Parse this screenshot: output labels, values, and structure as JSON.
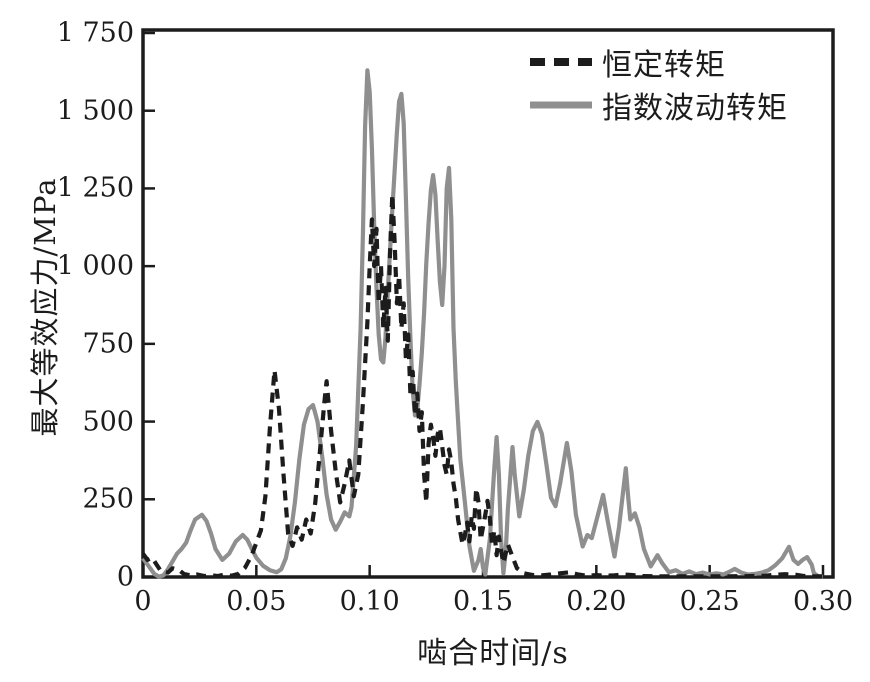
{
  "figure": {
    "background": "#ffffff",
    "axis_color": "#1c1c1c"
  },
  "chart_data": {
    "type": "line",
    "title": "",
    "xlabel": "啮合时间/s",
    "ylabel": "最大等效应力/MPa",
    "xlim": [
      0,
      0.3
    ],
    "ylim": [
      0,
      1750
    ],
    "grid": false,
    "legend_position": "top-right-inside",
    "x_ticks": [
      0,
      0.05,
      0.1,
      0.15,
      0.2,
      0.25,
      0.3
    ],
    "x_tick_labels": [
      "0",
      "0.05",
      "0.10",
      "0.15",
      "0.20",
      "0.25",
      "0.30"
    ],
    "y_ticks": [
      0,
      250,
      500,
      750,
      1000,
      1250,
      1500,
      1750
    ],
    "y_tick_labels": [
      "0",
      "250",
      "500",
      "750",
      "1 000",
      "1 250",
      "1 500",
      "1 750"
    ],
    "series": [
      {
        "name": "恒定转矩",
        "style": "dashed",
        "color": "#1c1c1c",
        "points": [
          [
            0.0,
            75
          ],
          [
            0.002,
            55
          ],
          [
            0.004,
            62
          ],
          [
            0.006,
            40
          ],
          [
            0.008,
            18
          ],
          [
            0.011,
            14
          ],
          [
            0.013,
            28
          ],
          [
            0.016,
            22
          ],
          [
            0.018,
            10
          ],
          [
            0.021,
            5
          ],
          [
            0.024,
            8
          ],
          [
            0.027,
            3
          ],
          [
            0.03,
            6
          ],
          [
            0.033,
            3
          ],
          [
            0.036,
            8
          ],
          [
            0.039,
            4
          ],
          [
            0.042,
            10
          ],
          [
            0.045,
            30
          ],
          [
            0.048,
            70
          ],
          [
            0.05,
            110
          ],
          [
            0.052,
            150
          ],
          [
            0.054,
            260
          ],
          [
            0.056,
            480
          ],
          [
            0.058,
            665
          ],
          [
            0.06,
            540
          ],
          [
            0.062,
            330
          ],
          [
            0.064,
            140
          ],
          [
            0.066,
            100
          ],
          [
            0.068,
            160
          ],
          [
            0.07,
            120
          ],
          [
            0.072,
            185
          ],
          [
            0.074,
            140
          ],
          [
            0.076,
            240
          ],
          [
            0.078,
            400
          ],
          [
            0.08,
            560
          ],
          [
            0.081,
            630
          ],
          [
            0.083,
            470
          ],
          [
            0.085,
            340
          ],
          [
            0.087,
            240
          ],
          [
            0.089,
            300
          ],
          [
            0.091,
            375
          ],
          [
            0.093,
            260
          ],
          [
            0.095,
            330
          ],
          [
            0.097,
            560
          ],
          [
            0.099,
            820
          ],
          [
            0.1,
            1000
          ],
          [
            0.101,
            1150
          ],
          [
            0.102,
            1000
          ],
          [
            0.103,
            1120
          ],
          [
            0.104,
            880
          ],
          [
            0.105,
            1000
          ],
          [
            0.106,
            800
          ],
          [
            0.107,
            930
          ],
          [
            0.108,
            760
          ],
          [
            0.109,
            1050
          ],
          [
            0.11,
            1230
          ],
          [
            0.111,
            1080
          ],
          [
            0.112,
            880
          ],
          [
            0.113,
            970
          ],
          [
            0.114,
            800
          ],
          [
            0.115,
            880
          ],
          [
            0.116,
            700
          ],
          [
            0.117,
            780
          ],
          [
            0.118,
            580
          ],
          [
            0.119,
            660
          ],
          [
            0.12,
            520
          ],
          [
            0.121,
            590
          ],
          [
            0.122,
            470
          ],
          [
            0.123,
            530
          ],
          [
            0.124,
            330
          ],
          [
            0.125,
            240
          ],
          [
            0.126,
            430
          ],
          [
            0.127,
            490
          ],
          [
            0.128,
            450
          ],
          [
            0.129,
            390
          ],
          [
            0.13,
            460
          ],
          [
            0.131,
            480
          ],
          [
            0.132,
            420
          ],
          [
            0.133,
            360
          ],
          [
            0.134,
            330
          ],
          [
            0.135,
            410
          ],
          [
            0.136,
            370
          ],
          [
            0.137,
            300
          ],
          [
            0.138,
            255
          ],
          [
            0.139,
            185
          ],
          [
            0.14,
            145
          ],
          [
            0.141,
            105
          ],
          [
            0.142,
            135
          ],
          [
            0.143,
            175
          ],
          [
            0.144,
            115
          ],
          [
            0.145,
            195
          ],
          [
            0.146,
            155
          ],
          [
            0.147,
            285
          ],
          [
            0.148,
            240
          ],
          [
            0.149,
            120
          ],
          [
            0.15,
            160
          ],
          [
            0.151,
            200
          ],
          [
            0.152,
            245
          ],
          [
            0.153,
            190
          ],
          [
            0.154,
            100
          ],
          [
            0.155,
            150
          ],
          [
            0.156,
            70
          ],
          [
            0.157,
            130
          ],
          [
            0.158,
            85
          ],
          [
            0.159,
            45
          ],
          [
            0.161,
            105
          ],
          [
            0.163,
            65
          ],
          [
            0.165,
            28
          ],
          [
            0.168,
            12
          ],
          [
            0.172,
            6
          ],
          [
            0.176,
            5
          ],
          [
            0.18,
            8
          ],
          [
            0.184,
            12
          ],
          [
            0.188,
            15
          ],
          [
            0.192,
            8
          ],
          [
            0.196,
            4
          ],
          [
            0.2,
            6
          ],
          [
            0.204,
            4
          ],
          [
            0.208,
            5
          ],
          [
            0.212,
            8
          ],
          [
            0.216,
            6
          ],
          [
            0.22,
            3
          ],
          [
            0.228,
            2
          ],
          [
            0.238,
            2
          ],
          [
            0.248,
            2
          ],
          [
            0.258,
            2
          ],
          [
            0.268,
            3
          ],
          [
            0.274,
            4
          ],
          [
            0.279,
            7
          ],
          [
            0.283,
            9
          ],
          [
            0.287,
            8
          ],
          [
            0.291,
            4
          ],
          [
            0.295,
            2
          ],
          [
            0.3,
            2
          ]
        ]
      },
      {
        "name": "指数波动转矩",
        "style": "solid",
        "color": "#8f8f8f",
        "points": [
          [
            0.0,
            60
          ],
          [
            0.003,
            30
          ],
          [
            0.005,
            10
          ],
          [
            0.007,
            1
          ],
          [
            0.009,
            5
          ],
          [
            0.011,
            25
          ],
          [
            0.013,
            50
          ],
          [
            0.015,
            75
          ],
          [
            0.017,
            90
          ],
          [
            0.019,
            110
          ],
          [
            0.021,
            150
          ],
          [
            0.023,
            185
          ],
          [
            0.026,
            200
          ],
          [
            0.028,
            180
          ],
          [
            0.03,
            140
          ],
          [
            0.032,
            90
          ],
          [
            0.035,
            55
          ],
          [
            0.038,
            75
          ],
          [
            0.041,
            115
          ],
          [
            0.044,
            135
          ],
          [
            0.046,
            120
          ],
          [
            0.048,
            90
          ],
          [
            0.05,
            62
          ],
          [
            0.053,
            36
          ],
          [
            0.056,
            22
          ],
          [
            0.059,
            15
          ],
          [
            0.061,
            25
          ],
          [
            0.063,
            60
          ],
          [
            0.065,
            130
          ],
          [
            0.067,
            240
          ],
          [
            0.069,
            380
          ],
          [
            0.071,
            490
          ],
          [
            0.073,
            540
          ],
          [
            0.075,
            553
          ],
          [
            0.077,
            500
          ],
          [
            0.079,
            390
          ],
          [
            0.081,
            265
          ],
          [
            0.083,
            185
          ],
          [
            0.085,
            152
          ],
          [
            0.087,
            178
          ],
          [
            0.089,
            208
          ],
          [
            0.091,
            195
          ],
          [
            0.092,
            225
          ],
          [
            0.094,
            420
          ],
          [
            0.096,
            800
          ],
          [
            0.097,
            1100
          ],
          [
            0.098,
            1450
          ],
          [
            0.099,
            1630
          ],
          [
            0.1,
            1560
          ],
          [
            0.101,
            1380
          ],
          [
            0.102,
            1130
          ],
          [
            0.103,
            930
          ],
          [
            0.104,
            780
          ],
          [
            0.105,
            700
          ],
          [
            0.106,
            690
          ],
          [
            0.107,
            770
          ],
          [
            0.108,
            920
          ],
          [
            0.11,
            1180
          ],
          [
            0.112,
            1430
          ],
          [
            0.113,
            1530
          ],
          [
            0.114,
            1554
          ],
          [
            0.115,
            1460
          ],
          [
            0.116,
            1220
          ],
          [
            0.117,
            960
          ],
          [
            0.118,
            760
          ],
          [
            0.119,
            600
          ],
          [
            0.12,
            520
          ],
          [
            0.121,
            540
          ],
          [
            0.122,
            620
          ],
          [
            0.123,
            720
          ],
          [
            0.124,
            850
          ],
          [
            0.125,
            1010
          ],
          [
            0.126,
            1140
          ],
          [
            0.127,
            1245
          ],
          [
            0.128,
            1293
          ],
          [
            0.129,
            1230
          ],
          [
            0.13,
            1080
          ],
          [
            0.131,
            950
          ],
          [
            0.132,
            875
          ],
          [
            0.133,
            1000
          ],
          [
            0.134,
            1250
          ],
          [
            0.135,
            1316
          ],
          [
            0.136,
            1150
          ],
          [
            0.137,
            800
          ],
          [
            0.138,
            630
          ],
          [
            0.139,
            500
          ],
          [
            0.14,
            380
          ],
          [
            0.142,
            240
          ],
          [
            0.144,
            100
          ],
          [
            0.146,
            20
          ],
          [
            0.148,
            55
          ],
          [
            0.149,
            90
          ],
          [
            0.15,
            30
          ],
          [
            0.151,
            8
          ],
          [
            0.153,
            120
          ],
          [
            0.155,
            350
          ],
          [
            0.156,
            450
          ],
          [
            0.157,
            330
          ],
          [
            0.158,
            120
          ],
          [
            0.159,
            12
          ],
          [
            0.16,
            80
          ],
          [
            0.161,
            220
          ],
          [
            0.163,
            418
          ],
          [
            0.164,
            330
          ],
          [
            0.166,
            195
          ],
          [
            0.168,
            280
          ],
          [
            0.17,
            390
          ],
          [
            0.172,
            470
          ],
          [
            0.174,
            499
          ],
          [
            0.176,
            460
          ],
          [
            0.178,
            360
          ],
          [
            0.18,
            255
          ],
          [
            0.182,
            228
          ],
          [
            0.184,
            300
          ],
          [
            0.187,
            431
          ],
          [
            0.189,
            340
          ],
          [
            0.191,
            200
          ],
          [
            0.194,
            98
          ],
          [
            0.196,
            135
          ],
          [
            0.198,
            125
          ],
          [
            0.2,
            180
          ],
          [
            0.203,
            264
          ],
          [
            0.205,
            180
          ],
          [
            0.208,
            66
          ],
          [
            0.21,
            160
          ],
          [
            0.213,
            350
          ],
          [
            0.214,
            260
          ],
          [
            0.215,
            185
          ],
          [
            0.217,
            205
          ],
          [
            0.219,
            160
          ],
          [
            0.221,
            90
          ],
          [
            0.224,
            34
          ],
          [
            0.227,
            70
          ],
          [
            0.229,
            45
          ],
          [
            0.232,
            15
          ],
          [
            0.235,
            22
          ],
          [
            0.238,
            10
          ],
          [
            0.241,
            18
          ],
          [
            0.244,
            9
          ],
          [
            0.247,
            14
          ],
          [
            0.25,
            8
          ],
          [
            0.253,
            12
          ],
          [
            0.256,
            8
          ],
          [
            0.259,
            18
          ],
          [
            0.261,
            26
          ],
          [
            0.264,
            14
          ],
          [
            0.267,
            8
          ],
          [
            0.27,
            10
          ],
          [
            0.273,
            14
          ],
          [
            0.276,
            22
          ],
          [
            0.279,
            38
          ],
          [
            0.282,
            60
          ],
          [
            0.285,
            97
          ],
          [
            0.287,
            55
          ],
          [
            0.289,
            42
          ],
          [
            0.291,
            55
          ],
          [
            0.293,
            64
          ],
          [
            0.295,
            40
          ],
          [
            0.296,
            12
          ],
          [
            0.298,
            2
          ],
          [
            0.3,
            1
          ]
        ]
      }
    ]
  }
}
